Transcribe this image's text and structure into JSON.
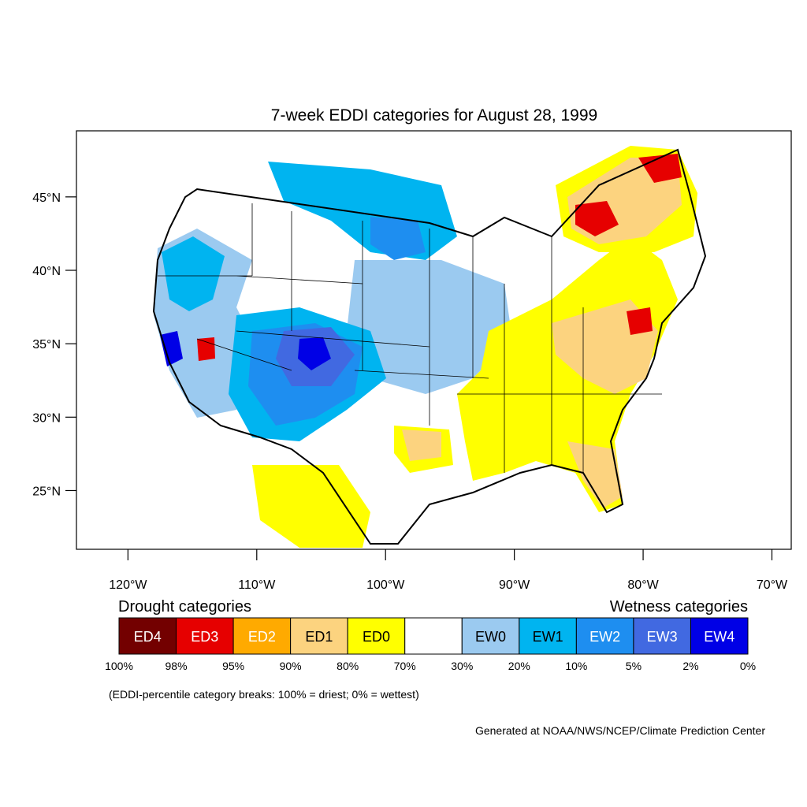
{
  "title": "7-week EDDI categories for August 28, 1999",
  "map": {
    "projection": "lat-lon",
    "lon_range": [
      -124,
      -68.5
    ],
    "lat_range": [
      21,
      49.5
    ],
    "lat_ticks": [
      {
        "value": 45,
        "label": "45°N"
      },
      {
        "value": 40,
        "label": "40°N"
      },
      {
        "value": 35,
        "label": "35°N"
      },
      {
        "value": 30,
        "label": "30°N"
      },
      {
        "value": 25,
        "label": "25°N"
      }
    ],
    "lon_ticks": [
      {
        "value": -120,
        "label": "120°W"
      },
      {
        "value": -110,
        "label": "110°W"
      },
      {
        "value": -100,
        "label": "100°W"
      },
      {
        "value": -90,
        "label": "90°W"
      },
      {
        "value": -80,
        "label": "80°W"
      },
      {
        "value": -70,
        "label": "70°W"
      }
    ]
  },
  "legend": {
    "drought_heading": "Drought categories",
    "wetness_heading": "Wetness categories",
    "categories": [
      {
        "label": "ED4",
        "color": "#730000",
        "text_color": "#ffffff"
      },
      {
        "label": "ED3",
        "color": "#e60000",
        "text_color": "#ffffff"
      },
      {
        "label": "ED2",
        "color": "#ffaa00",
        "text_color": "#ffffff"
      },
      {
        "label": "ED1",
        "color": "#fcd37f",
        "text_color": "#000000"
      },
      {
        "label": "ED0",
        "color": "#ffff00",
        "text_color": "#000000"
      },
      {
        "label": "",
        "color": "#ffffff",
        "text_color": "#000000"
      },
      {
        "label": "EW0",
        "color": "#9bcaf0",
        "text_color": "#000000"
      },
      {
        "label": "EW1",
        "color": "#00b4f0",
        "text_color": "#000000"
      },
      {
        "label": "EW2",
        "color": "#1e8ef0",
        "text_color": "#ffffff"
      },
      {
        "label": "EW3",
        "color": "#4169e1",
        "text_color": "#ffffff"
      },
      {
        "label": "EW4",
        "color": "#0000e6",
        "text_color": "#ffffff"
      }
    ],
    "breaks": [
      "100%",
      "98%",
      "95%",
      "90%",
      "80%",
      "70%",
      "30%",
      "20%",
      "10%",
      "5%",
      "2%",
      "0%"
    ],
    "note": "(EDDI-percentile category breaks: 100% = driest; 0% = wettest)"
  },
  "credit": "Generated at NOAA/NWS/NCEP/Climate Prediction Center"
}
